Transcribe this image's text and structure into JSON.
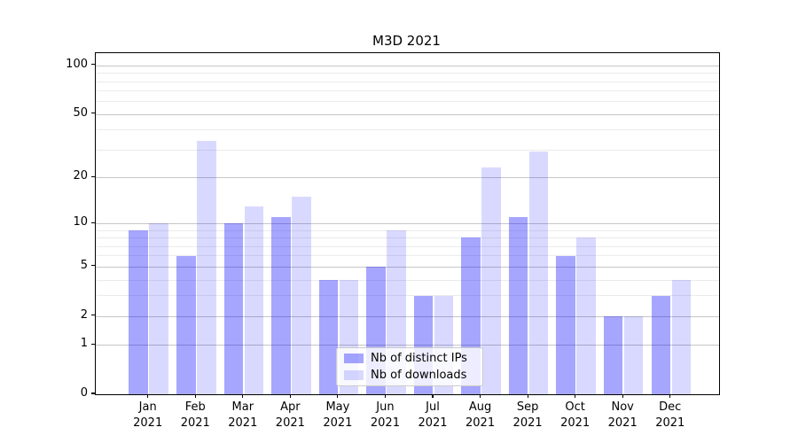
{
  "title": "M3D 2021",
  "chart_data": {
    "type": "bar",
    "title": "M3D 2021",
    "months": [
      "Jan",
      "Feb",
      "Mar",
      "Apr",
      "May",
      "Jun",
      "Jul",
      "Aug",
      "Sep",
      "Oct",
      "Nov",
      "Dec"
    ],
    "year_label": "2021",
    "series": [
      {
        "name": "Nb of distinct IPs",
        "color": "rgba(0,0,255,0.35)",
        "color_hex": "#a6a6ff",
        "values": [
          9,
          6,
          10,
          11,
          4,
          5,
          3,
          8,
          11,
          6,
          2,
          3
        ]
      },
      {
        "name": "Nb of downloads",
        "color": "rgba(0,0,255,0.15)",
        "color_hex": "#d9d9ff",
        "values": [
          10,
          34,
          13,
          15,
          4,
          9,
          3,
          23,
          29,
          8,
          2,
          4
        ]
      }
    ],
    "yscale": "log1p",
    "yticks_major": [
      0,
      1,
      2,
      5,
      10,
      20,
      50,
      100
    ],
    "yticks_minor": [
      3,
      4,
      6,
      7,
      8,
      9,
      30,
      40,
      60,
      70,
      80,
      90
    ],
    "ylim": [
      0,
      117
    ],
    "xlabel": "",
    "ylabel": "",
    "grid": "both",
    "legend_position": "lower center"
  }
}
